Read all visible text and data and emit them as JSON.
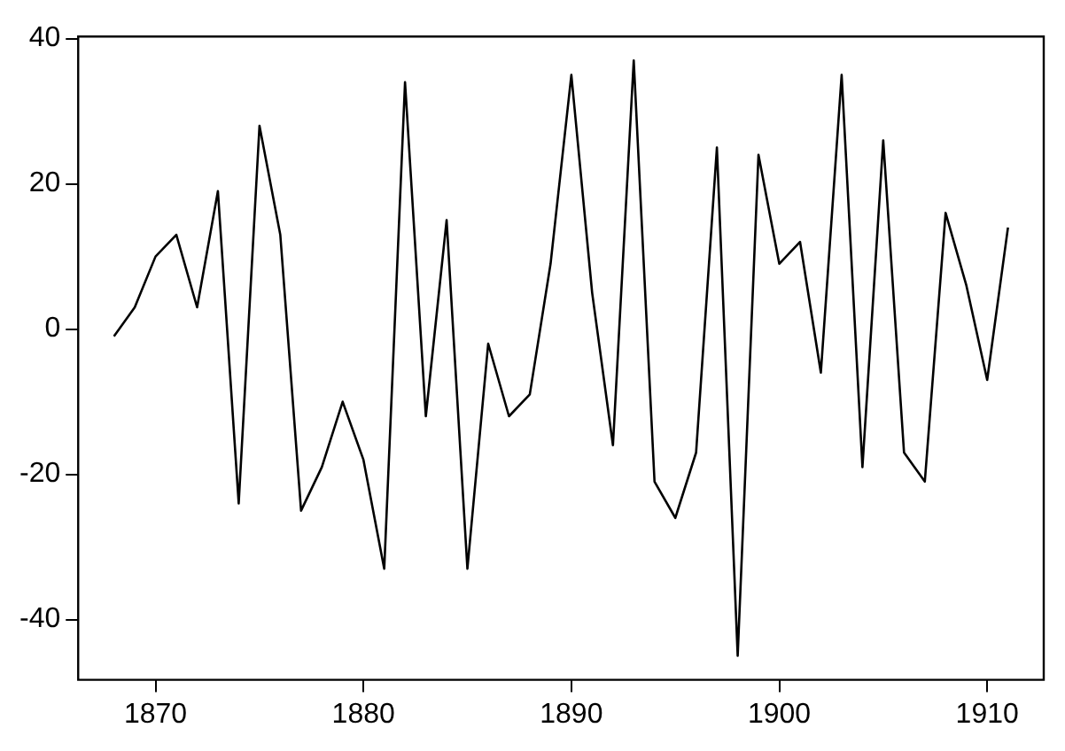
{
  "chart_data": {
    "type": "line",
    "x": [
      1868,
      1869,
      1870,
      1871,
      1872,
      1873,
      1874,
      1875,
      1876,
      1877,
      1878,
      1879,
      1880,
      1881,
      1882,
      1883,
      1884,
      1885,
      1886,
      1887,
      1888,
      1889,
      1890,
      1891,
      1892,
      1893,
      1894,
      1895,
      1896,
      1897,
      1898,
      1899,
      1900,
      1901,
      1902,
      1903,
      1904,
      1905,
      1906,
      1907,
      1908,
      1909,
      1910,
      1911
    ],
    "series": [
      {
        "color": "#000000",
        "values": [
          -1,
          3,
          10,
          13,
          3,
          19,
          -24,
          28,
          13,
          -25,
          -19,
          -10,
          -18,
          -33,
          34,
          -12,
          15,
          -33,
          -2,
          -12,
          -9,
          9,
          35,
          5,
          -16,
          37,
          -21,
          -26,
          -17,
          25,
          -45,
          24,
          9,
          12,
          -6,
          35,
          -19,
          26,
          -17,
          -21,
          16,
          6,
          -7,
          14
        ]
      }
    ],
    "xlim": [
      1866.28,
      1912.72
    ],
    "xticks": [
      1870,
      1880,
      1890,
      1900,
      1910
    ],
    "ylim": [
      -48.3,
      40.3
    ],
    "yticks": [
      -40,
      -20,
      0,
      20,
      40
    ],
    "grid": false,
    "legend": false,
    "marker": "none",
    "line_style": "solid"
  }
}
